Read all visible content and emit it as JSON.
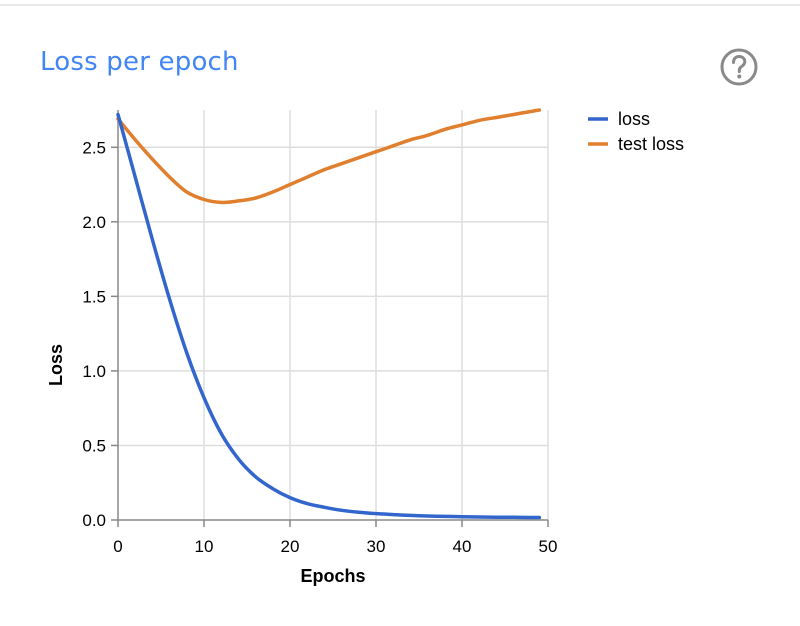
{
  "panel": {
    "title": "Loss per epoch",
    "title_color": "#4285f4",
    "help_icon": "question-circle-icon"
  },
  "chart_data": {
    "type": "line",
    "xlabel": "Epochs",
    "ylabel": "Loss",
    "xlim": [
      0,
      50
    ],
    "ylim": [
      0,
      2.75
    ],
    "xticks": [
      0,
      10,
      20,
      30,
      40,
      50
    ],
    "yticks": [
      0.0,
      0.5,
      1.0,
      1.5,
      2.0,
      2.5
    ],
    "ytick_labels": [
      "0.0",
      "0.5",
      "1.0",
      "1.5",
      "2.0",
      "2.5"
    ],
    "grid": true,
    "legend": "top-right",
    "x": [
      0,
      2,
      4,
      6,
      8,
      10,
      12,
      14,
      16,
      18,
      20,
      22,
      24,
      26,
      28,
      30,
      32,
      34,
      36,
      38,
      40,
      42,
      44,
      46,
      48,
      49
    ],
    "series": [
      {
        "name": "loss",
        "color": "#3366cc",
        "values": [
          2.72,
          2.3,
          1.88,
          1.48,
          1.12,
          0.82,
          0.58,
          0.41,
          0.29,
          0.21,
          0.15,
          0.11,
          0.085,
          0.065,
          0.052,
          0.043,
          0.036,
          0.031,
          0.027,
          0.024,
          0.022,
          0.02,
          0.019,
          0.018,
          0.017,
          0.017
        ]
      },
      {
        "name": "test loss",
        "color": "#e07f2e",
        "values": [
          2.69,
          2.55,
          2.42,
          2.3,
          2.2,
          2.15,
          2.13,
          2.14,
          2.16,
          2.2,
          2.25,
          2.3,
          2.35,
          2.39,
          2.43,
          2.47,
          2.51,
          2.55,
          2.58,
          2.62,
          2.65,
          2.68,
          2.7,
          2.72,
          2.74,
          2.75
        ]
      }
    ]
  }
}
